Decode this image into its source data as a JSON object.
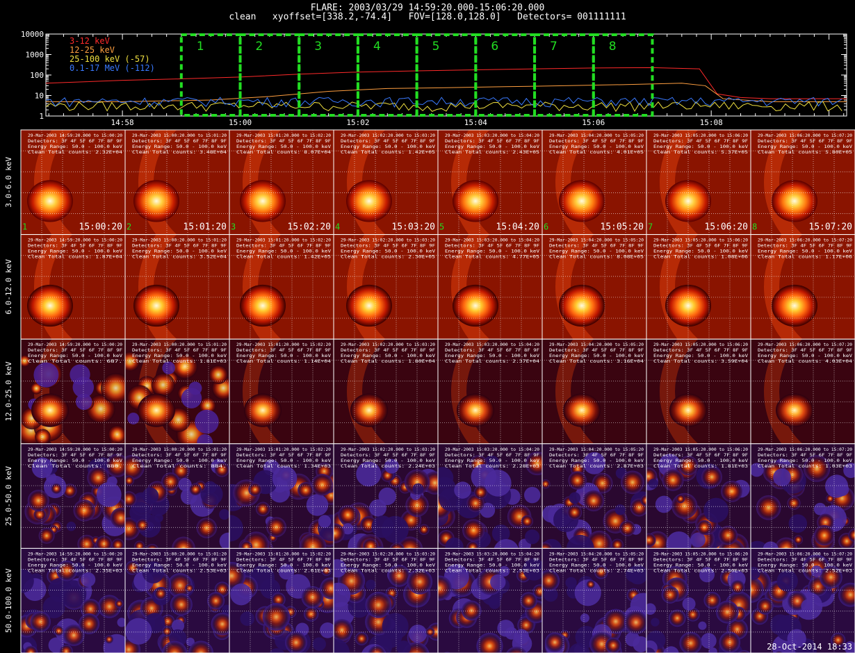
{
  "header": {
    "line1": "FLARE: 2003/03/29 14:59:20.000-15:06:20.000",
    "line2": "clean   xyoffset=[338.2,-74.4]   FOV=[128.0,128.0]   Detectors= 001111111"
  },
  "chart_data": [
    {
      "type": "line",
      "yscale": "log",
      "ylim": [
        1,
        10000
      ],
      "y_ticks": [
        "1",
        "10",
        "100",
        "1000",
        "10000"
      ],
      "x_ticks": [
        "14:58",
        "15:00",
        "15:02",
        "15:04",
        "15:06",
        "15:08"
      ],
      "x_tick_minutes": [
        0,
        2,
        4,
        6,
        8,
        10
      ],
      "xlim_minutes": [
        -1.3,
        12.3
      ],
      "grid": false,
      "legend_position": "top-left",
      "series": [
        {
          "name": "3-12 keV",
          "color": "#ff2a2a",
          "t": [
            -1.3,
            0,
            1,
            2,
            3,
            4,
            5,
            6,
            7,
            8,
            9,
            9.8,
            10.1,
            10.5,
            11,
            12.3
          ],
          "values": [
            40,
            55,
            65,
            80,
            110,
            140,
            160,
            180,
            200,
            220,
            230,
            200,
            12,
            8,
            7,
            7
          ]
        },
        {
          "name": "12-25 keV",
          "color": "#ff9f40",
          "t": [
            -1.3,
            0,
            1.5,
            2.5,
            3.5,
            4.5,
            5.5,
            6.5,
            7.5,
            8.5,
            9.5,
            9.9,
            10.2,
            11,
            12.3
          ],
          "values": [
            5,
            5,
            6,
            9,
            16,
            22,
            24,
            27,
            30,
            34,
            40,
            30,
            7,
            5,
            5
          ]
        },
        {
          "name": "25-100 keV (-57)",
          "color": "#f0e040",
          "t": [
            -1.3,
            0,
            2,
            4,
            6,
            8,
            10,
            12.3
          ],
          "values": [
            3,
            3,
            3,
            3,
            3,
            3,
            3,
            3
          ]
        },
        {
          "name": "0.1-17 MeV (-112)",
          "color": "#3a7aff",
          "t": [
            -1.3,
            0,
            2,
            4,
            6,
            8,
            10,
            12.3
          ],
          "values": [
            5,
            5,
            5,
            5,
            4,
            4,
            4,
            5
          ]
        }
      ],
      "intervals": {
        "labels": [
          "1",
          "2",
          "3",
          "4",
          "5",
          "6",
          "7",
          "8"
        ],
        "start_minutes": [
          1,
          2,
          3,
          4,
          5,
          6,
          7,
          8
        ],
        "end_minutes": [
          2,
          3,
          4,
          5,
          6,
          7,
          8,
          9
        ],
        "color": "#22dd22"
      }
    },
    {
      "type": "heatmap",
      "row_labels": [
        "3.0-6.0 keV",
        "6.0-12.0 keV",
        "12.0-25.0 keV",
        "25.0-50.0 keV",
        "50.0-100.0 keV"
      ],
      "columns": [
        {
          "index_label": "1",
          "time_label": "15:00:20",
          "range": "29-Mar-2003 14:59:20.000 to 15:00:20"
        },
        {
          "index_label": "2",
          "time_label": "15:01:20",
          "range": "29-Mar-2003 15:00:20.000 to 15:01:20"
        },
        {
          "index_label": "3",
          "time_label": "15:02:20",
          "range": "29-Mar-2003 15:01:20.000 to 15:02:20"
        },
        {
          "index_label": "4",
          "time_label": "15:03:20",
          "range": "29-Mar-2003 15:02:20.000 to 15:03:20"
        },
        {
          "index_label": "5",
          "time_label": "15:04:20",
          "range": "29-Mar-2003 15:03:20.000 to 15:04:20"
        },
        {
          "index_label": "6",
          "time_label": "15:05:20",
          "range": "29-Mar-2003 15:04:20.000 to 15:05:20"
        },
        {
          "index_label": "7",
          "time_label": "15:06:20",
          "range": "29-Mar-2003 15:05:20.000 to 15:06:20"
        },
        {
          "index_label": "8",
          "time_label": "15:07:20",
          "range": "29-Mar-2003 15:06:20.000 to 15:07:20"
        }
      ],
      "detectors_text": "Detectors: 3F 4F 5F 6F 7F 8F 9F",
      "energy_text": "Energy Range: 50.0 - 100.0 keV",
      "clean_prefix": "Clean",
      "total_prefix": "Total counts:",
      "total_counts": [
        [
          "2.32E+04",
          "3.48E+04",
          "8.07E+04",
          "1.42E+05",
          "2.43E+05",
          "4.01E+05",
          "5.37E+05",
          "5.80E+05"
        ],
        [
          "1.87E+04",
          "3.52E+04",
          "1.42E+05",
          "2.30E+05",
          "4.77E+05",
          "8.08E+05",
          "1.08E+06",
          "1.17E+06"
        ],
        [
          "687.",
          "1.81E+03",
          "1.14E+04",
          "1.80E+04",
          "2.37E+04",
          "3.16E+04",
          "3.59E+04",
          "4.03E+04"
        ],
        [
          "880.",
          "884.",
          "1.34E+03",
          "2.24E+03",
          "2.28E+03",
          "2.87E+03",
          "1.81E+03",
          "1.03E+03"
        ],
        [
          "2.35E+03",
          "2.53E+03",
          "2.61E+03",
          "2.32E+03",
          "2.53E+03",
          "2.74E+03",
          "2.50E+03",
          "2.52E+03"
        ]
      ]
    }
  ],
  "footer": {
    "timestamp": "28-Oct-2014 18:33"
  }
}
